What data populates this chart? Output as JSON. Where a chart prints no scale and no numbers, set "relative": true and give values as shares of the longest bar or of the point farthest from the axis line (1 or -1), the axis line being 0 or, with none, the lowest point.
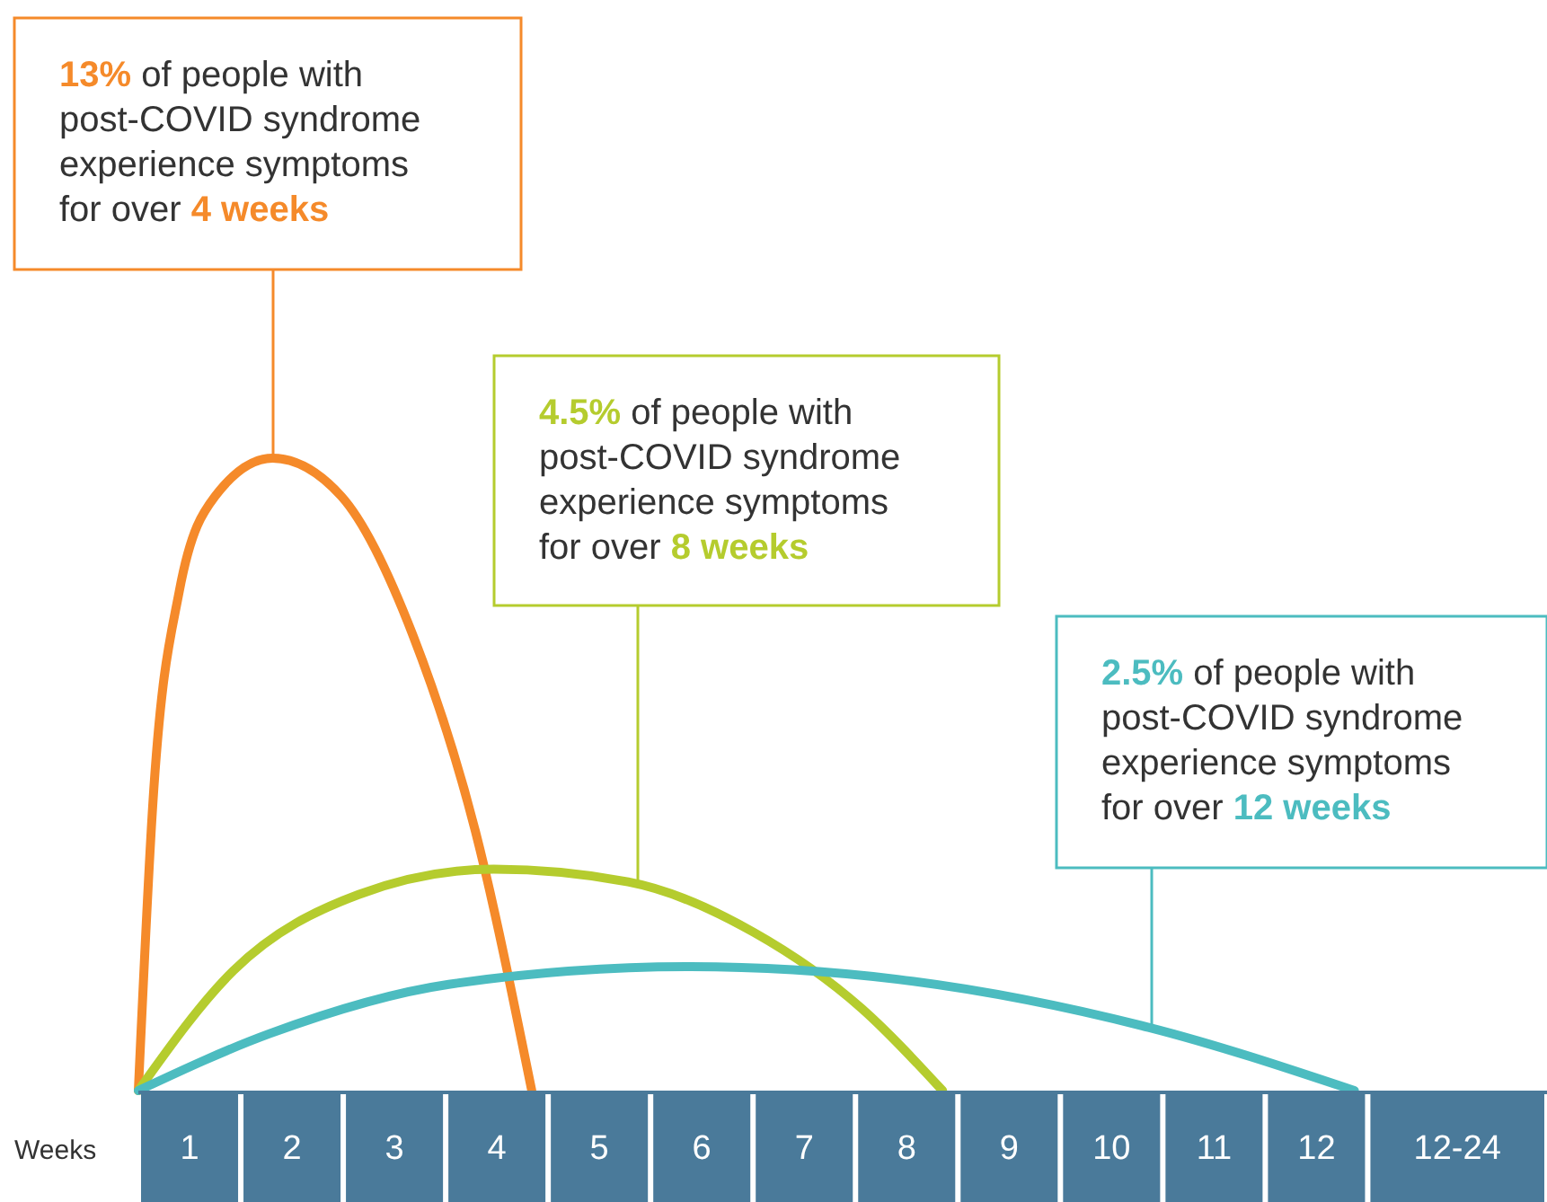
{
  "chart_data": {
    "type": "line",
    "relative": true,
    "xlabel": "Weeks",
    "legend": false,
    "grid": false,
    "marker": "none",
    "line_style": "solid",
    "xlim": [
      0,
      13.75
    ],
    "xticks": [
      {
        "value": 0.5,
        "label": "1"
      },
      {
        "value": 1.5,
        "label": "2"
      },
      {
        "value": 2.5,
        "label": "3"
      },
      {
        "value": 3.5,
        "label": "4"
      },
      {
        "value": 4.5,
        "label": "5"
      },
      {
        "value": 5.5,
        "label": "6"
      },
      {
        "value": 6.5,
        "label": "7"
      },
      {
        "value": 7.5,
        "label": "8"
      },
      {
        "value": 8.5,
        "label": "9"
      },
      {
        "value": 9.5,
        "label": "10"
      },
      {
        "value": 10.5,
        "label": "11"
      },
      {
        "value": 11.5,
        "label": "12"
      },
      {
        "value": 12.875,
        "label": "12-24"
      }
    ],
    "series": [
      {
        "color": "#f58a2a",
        "x": [
          0,
          0.14,
          0.4,
          0.75,
          1.31,
          1.98,
          2.68,
          3.29,
          3.84
        ],
        "values": [
          0,
          0.45,
          0.79,
          0.94,
          1,
          0.94,
          0.72,
          0.41,
          0
        ]
      },
      {
        "color": "#b5cc2e",
        "x": [
          0,
          0.93,
          2.15,
          3.47,
          4.78,
          6.01,
          7.06,
          7.85
        ],
        "values": [
          0,
          0.19,
          0.31,
          0.35,
          0.33,
          0.25,
          0.13,
          0
        ]
      },
      {
        "color": "#4cbcc0",
        "x": [
          0,
          1.28,
          3.03,
          5.39,
          7.41,
          9.86,
          11.87
        ],
        "values": [
          0,
          0.09,
          0.168,
          0.196,
          0.176,
          0.1,
          0
        ]
      }
    ],
    "annotations": [
      "13% of people with post-COVID syndrome experience symptoms for over 4 weeks",
      "4.5% of people with post-COVID syndrome experience symptoms for over 8 weeks",
      "2.5% of people with post-COVID syndrome experience symptoms for over 12 weeks"
    ]
  }
}
